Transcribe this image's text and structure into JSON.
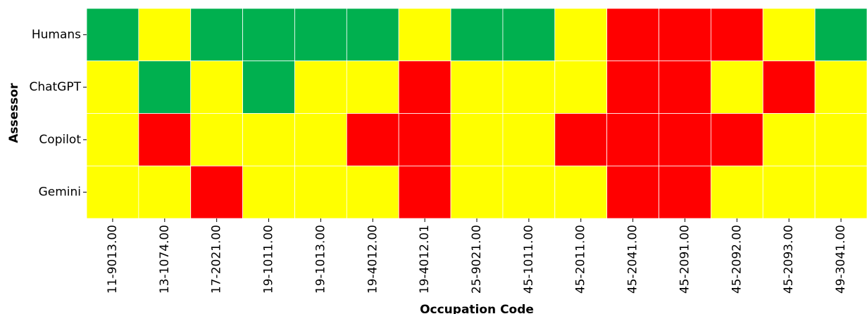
{
  "chart_data": {
    "type": "heatmap",
    "x_label": "Occupation Code",
    "y_label": "Assessor",
    "x_categories": [
      "11-9013.00",
      "13-1074.00",
      "17-2021.00",
      "19-1011.00",
      "19-1013.00",
      "19-4012.00",
      "19-4012.01",
      "25-9021.00",
      "45-1011.00",
      "45-2011.00",
      "45-2041.00",
      "45-2091.00",
      "45-2092.00",
      "45-2093.00",
      "49-3041.00"
    ],
    "y_categories": [
      "Humans",
      "ChatGPT",
      "Copilot",
      "Gemini"
    ],
    "cells": [
      [
        "#00b04f",
        "#ffff00",
        "#00b04f",
        "#00b04f",
        "#00b04f",
        "#00b04f",
        "#ffff00",
        "#00b04f",
        "#00b04f",
        "#ffff00",
        "#ff0000",
        "#ff0000",
        "#ff0000",
        "#ffff00",
        "#00b04f"
      ],
      [
        "#ffff00",
        "#00b04f",
        "#ffff00",
        "#00b04f",
        "#ffff00",
        "#ffff00",
        "#ff0000",
        "#ffff00",
        "#ffff00",
        "#ffff00",
        "#ff0000",
        "#ff0000",
        "#ffff00",
        "#ff0000",
        "#ffff00"
      ],
      [
        "#ffff00",
        "#ff0000",
        "#ffff00",
        "#ffff00",
        "#ffff00",
        "#ff0000",
        "#ff0000",
        "#ffff00",
        "#ffff00",
        "#ff0000",
        "#ff0000",
        "#ff0000",
        "#ff0000",
        "#ffff00",
        "#ffff00"
      ],
      [
        "#ffff00",
        "#ffff00",
        "#ff0000",
        "#ffff00",
        "#ffff00",
        "#ffff00",
        "#ff0000",
        "#ffff00",
        "#ffff00",
        "#ffff00",
        "#ff0000",
        "#ff0000",
        "#ffff00",
        "#ffff00",
        "#ffff00"
      ]
    ]
  }
}
